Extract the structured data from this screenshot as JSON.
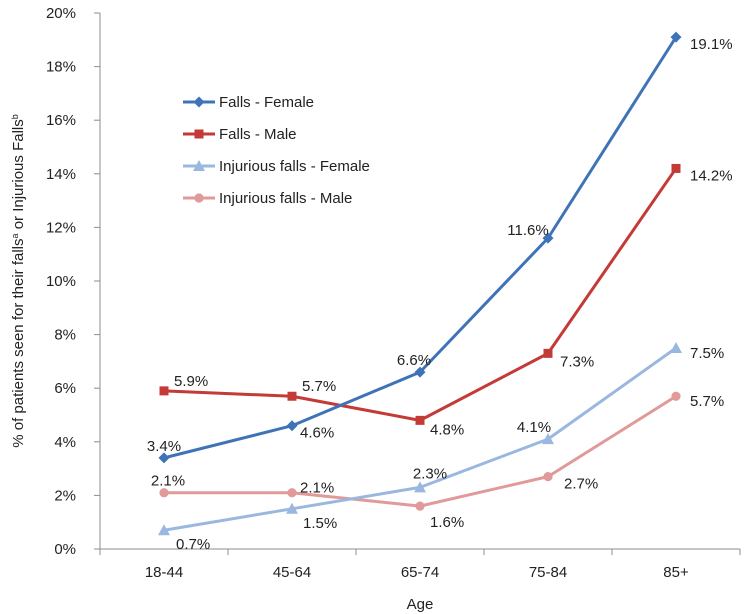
{
  "chart_data": {
    "type": "line",
    "title": "",
    "xlabel": "Age",
    "ylabel": "% of patients seen for their falls",
    "ylabel_sup1": "a",
    "ylabel_mid": " or Injurious Falls",
    "ylabel_sup2": "b",
    "categories": [
      "18-44",
      "45-64",
      "65-74",
      "75-84",
      "85+"
    ],
    "ylim": [
      0,
      20
    ],
    "ytick_labels": [
      "0%",
      "2%",
      "4%",
      "6%",
      "8%",
      "10%",
      "12%",
      "14%",
      "16%",
      "18%",
      "20%"
    ],
    "grid": false,
    "legend_position": "upper-left inside plot",
    "series": [
      {
        "name": "Falls - Female",
        "color": "#3f73b8",
        "marker": "diamond",
        "values": [
          3.4,
          4.6,
          6.6,
          11.6,
          19.1
        ],
        "labels": [
          "3.4%",
          "4.6%",
          "6.6%",
          "11.6%",
          "19.1%"
        ]
      },
      {
        "name": "Falls - Male",
        "color": "#c43a37",
        "marker": "square",
        "values": [
          5.9,
          5.7,
          4.8,
          7.3,
          14.2
        ],
        "labels": [
          "5.9%",
          "5.7%",
          "4.8%",
          "7.3%",
          "14.2%"
        ]
      },
      {
        "name": "Injurious falls - Female",
        "color": "#9ab8df",
        "marker": "triangle",
        "values": [
          0.7,
          1.5,
          2.3,
          4.1,
          7.5
        ],
        "labels": [
          "0.7%",
          "1.5%",
          "2.3%",
          "4.1%",
          "7.5%"
        ]
      },
      {
        "name": "Injurious falls - Male",
        "color": "#e09a99",
        "marker": "circle",
        "values": [
          2.1,
          2.1,
          1.6,
          2.7,
          5.7
        ],
        "labels": [
          "2.1%",
          "2.1%",
          "1.6%",
          "2.7%",
          "5.7%"
        ]
      }
    ]
  }
}
